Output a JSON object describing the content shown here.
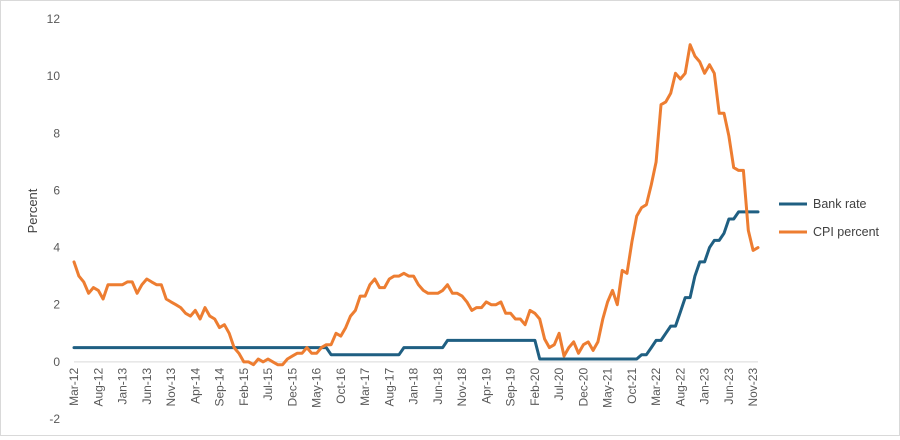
{
  "chart_data": {
    "type": "line",
    "title": "",
    "xlabel": "",
    "ylabel": "Percent",
    "ylim": [
      -2,
      12
    ],
    "yticks": [
      -2,
      0,
      2,
      4,
      6,
      8,
      10,
      12
    ],
    "grid": false,
    "legend_position": "right",
    "x_tick_labels": [
      "Mar-12",
      "Aug-12",
      "Jan-13",
      "Jun-13",
      "Nov-13",
      "Apr-14",
      "Sep-14",
      "Feb-15",
      "Jul-15",
      "Dec-15",
      "May-16",
      "Oct-16",
      "Mar-17",
      "Aug-17",
      "Jan-18",
      "Jun-18",
      "Nov-18",
      "Apr-19",
      "Sep-19",
      "Feb-20",
      "Jul-20",
      "Dec-20",
      "May-21",
      "Oct-21",
      "Mar-22",
      "Aug-22",
      "Jan-23",
      "Jun-23",
      "Nov-23"
    ],
    "x_start": "Mar-12",
    "x_end": "Dec-23",
    "series": [
      {
        "name": "Bank rate",
        "color": "#1f5f82",
        "points": [
          [
            "Mar-12",
            0.5
          ],
          [
            "Jul-16",
            0.5
          ],
          [
            "Aug-16",
            0.25
          ],
          [
            "Oct-17",
            0.25
          ],
          [
            "Nov-17",
            0.5
          ],
          [
            "Jul-18",
            0.5
          ],
          [
            "Aug-18",
            0.75
          ],
          [
            "Feb-20",
            0.75
          ],
          [
            "Mar-20",
            0.1
          ],
          [
            "Nov-21",
            0.1
          ],
          [
            "Dec-21",
            0.25
          ],
          [
            "Jan-22",
            0.25
          ],
          [
            "Feb-22",
            0.5
          ],
          [
            "Mar-22",
            0.75
          ],
          [
            "Apr-22",
            0.75
          ],
          [
            "May-22",
            1.0
          ],
          [
            "Jun-22",
            1.25
          ],
          [
            "Jul-22",
            1.25
          ],
          [
            "Aug-22",
            1.75
          ],
          [
            "Sep-22",
            2.25
          ],
          [
            "Oct-22",
            2.25
          ],
          [
            "Nov-22",
            3.0
          ],
          [
            "Dec-22",
            3.5
          ],
          [
            "Jan-23",
            3.5
          ],
          [
            "Feb-23",
            4.0
          ],
          [
            "Mar-23",
            4.25
          ],
          [
            "Apr-23",
            4.25
          ],
          [
            "May-23",
            4.5
          ],
          [
            "Jun-23",
            5.0
          ],
          [
            "Jul-23",
            5.0
          ],
          [
            "Aug-23",
            5.25
          ],
          [
            "Dec-23",
            5.25
          ]
        ]
      },
      {
        "name": "CPI percent",
        "color": "#ed7d31",
        "points": [
          [
            "Mar-12",
            3.5
          ],
          [
            "Apr-12",
            3.0
          ],
          [
            "May-12",
            2.8
          ],
          [
            "Jun-12",
            2.4
          ],
          [
            "Jul-12",
            2.6
          ],
          [
            "Aug-12",
            2.5
          ],
          [
            "Sep-12",
            2.2
          ],
          [
            "Oct-12",
            2.7
          ],
          [
            "Nov-12",
            2.7
          ],
          [
            "Dec-12",
            2.7
          ],
          [
            "Jan-13",
            2.7
          ],
          [
            "Feb-13",
            2.8
          ],
          [
            "Mar-13",
            2.8
          ],
          [
            "Apr-13",
            2.4
          ],
          [
            "May-13",
            2.7
          ],
          [
            "Jun-13",
            2.9
          ],
          [
            "Jul-13",
            2.8
          ],
          [
            "Aug-13",
            2.7
          ],
          [
            "Sep-13",
            2.7
          ],
          [
            "Oct-13",
            2.2
          ],
          [
            "Nov-13",
            2.1
          ],
          [
            "Dec-13",
            2.0
          ],
          [
            "Jan-14",
            1.9
          ],
          [
            "Feb-14",
            1.7
          ],
          [
            "Mar-14",
            1.6
          ],
          [
            "Apr-14",
            1.8
          ],
          [
            "May-14",
            1.5
          ],
          [
            "Jun-14",
            1.9
          ],
          [
            "Jul-14",
            1.6
          ],
          [
            "Aug-14",
            1.5
          ],
          [
            "Sep-14",
            1.2
          ],
          [
            "Oct-14",
            1.3
          ],
          [
            "Nov-14",
            1.0
          ],
          [
            "Dec-14",
            0.5
          ],
          [
            "Jan-15",
            0.3
          ],
          [
            "Feb-15",
            0.0
          ],
          [
            "Mar-15",
            0.0
          ],
          [
            "Apr-15",
            -0.1
          ],
          [
            "May-15",
            0.1
          ],
          [
            "Jun-15",
            0.0
          ],
          [
            "Jul-15",
            0.1
          ],
          [
            "Aug-15",
            0.0
          ],
          [
            "Sep-15",
            -0.1
          ],
          [
            "Oct-15",
            -0.1
          ],
          [
            "Nov-15",
            0.1
          ],
          [
            "Dec-15",
            0.2
          ],
          [
            "Jan-16",
            0.3
          ],
          [
            "Feb-16",
            0.3
          ],
          [
            "Mar-16",
            0.5
          ],
          [
            "Apr-16",
            0.3
          ],
          [
            "May-16",
            0.3
          ],
          [
            "Jun-16",
            0.5
          ],
          [
            "Jul-16",
            0.6
          ],
          [
            "Aug-16",
            0.6
          ],
          [
            "Sep-16",
            1.0
          ],
          [
            "Oct-16",
            0.9
          ],
          [
            "Nov-16",
            1.2
          ],
          [
            "Dec-16",
            1.6
          ],
          [
            "Jan-17",
            1.8
          ],
          [
            "Feb-17",
            2.3
          ],
          [
            "Mar-17",
            2.3
          ],
          [
            "Apr-17",
            2.7
          ],
          [
            "May-17",
            2.9
          ],
          [
            "Jun-17",
            2.6
          ],
          [
            "Jul-17",
            2.6
          ],
          [
            "Aug-17",
            2.9
          ],
          [
            "Sep-17",
            3.0
          ],
          [
            "Oct-17",
            3.0
          ],
          [
            "Nov-17",
            3.1
          ],
          [
            "Dec-17",
            3.0
          ],
          [
            "Jan-18",
            3.0
          ],
          [
            "Feb-18",
            2.7
          ],
          [
            "Mar-18",
            2.5
          ],
          [
            "Apr-18",
            2.4
          ],
          [
            "May-18",
            2.4
          ],
          [
            "Jun-18",
            2.4
          ],
          [
            "Jul-18",
            2.5
          ],
          [
            "Aug-18",
            2.7
          ],
          [
            "Sep-18",
            2.4
          ],
          [
            "Oct-18",
            2.4
          ],
          [
            "Nov-18",
            2.3
          ],
          [
            "Dec-18",
            2.1
          ],
          [
            "Jan-19",
            1.8
          ],
          [
            "Feb-19",
            1.9
          ],
          [
            "Mar-19",
            1.9
          ],
          [
            "Apr-19",
            2.1
          ],
          [
            "May-19",
            2.0
          ],
          [
            "Jun-19",
            2.0
          ],
          [
            "Jul-19",
            2.1
          ],
          [
            "Aug-19",
            1.7
          ],
          [
            "Sep-19",
            1.7
          ],
          [
            "Oct-19",
            1.5
          ],
          [
            "Nov-19",
            1.5
          ],
          [
            "Dec-19",
            1.3
          ],
          [
            "Jan-20",
            1.8
          ],
          [
            "Feb-20",
            1.7
          ],
          [
            "Mar-20",
            1.5
          ],
          [
            "Apr-20",
            0.8
          ],
          [
            "May-20",
            0.5
          ],
          [
            "Jun-20",
            0.6
          ],
          [
            "Jul-20",
            1.0
          ],
          [
            "Aug-20",
            0.2
          ],
          [
            "Sep-20",
            0.5
          ],
          [
            "Oct-20",
            0.7
          ],
          [
            "Nov-20",
            0.3
          ],
          [
            "Dec-20",
            0.6
          ],
          [
            "Jan-21",
            0.7
          ],
          [
            "Feb-21",
            0.4
          ],
          [
            "Mar-21",
            0.7
          ],
          [
            "Apr-21",
            1.5
          ],
          [
            "May-21",
            2.1
          ],
          [
            "Jun-21",
            2.5
          ],
          [
            "Jul-21",
            2.0
          ],
          [
            "Aug-21",
            3.2
          ],
          [
            "Sep-21",
            3.1
          ],
          [
            "Oct-21",
            4.2
          ],
          [
            "Nov-21",
            5.1
          ],
          [
            "Dec-21",
            5.4
          ],
          [
            "Jan-22",
            5.5
          ],
          [
            "Feb-22",
            6.2
          ],
          [
            "Mar-22",
            7.0
          ],
          [
            "Apr-22",
            9.0
          ],
          [
            "May-22",
            9.1
          ],
          [
            "Jun-22",
            9.4
          ],
          [
            "Jul-22",
            10.1
          ],
          [
            "Aug-22",
            9.9
          ],
          [
            "Sep-22",
            10.1
          ],
          [
            "Oct-22",
            11.1
          ],
          [
            "Nov-22",
            10.7
          ],
          [
            "Dec-22",
            10.5
          ],
          [
            "Jan-23",
            10.1
          ],
          [
            "Feb-23",
            10.4
          ],
          [
            "Mar-23",
            10.1
          ],
          [
            "Apr-23",
            8.7
          ],
          [
            "May-23",
            8.7
          ],
          [
            "Jun-23",
            7.9
          ],
          [
            "Jul-23",
            6.8
          ],
          [
            "Aug-23",
            6.7
          ],
          [
            "Sep-23",
            6.7
          ],
          [
            "Oct-23",
            4.6
          ],
          [
            "Nov-23",
            3.9
          ],
          [
            "Dec-23",
            4.0
          ]
        ]
      }
    ]
  }
}
